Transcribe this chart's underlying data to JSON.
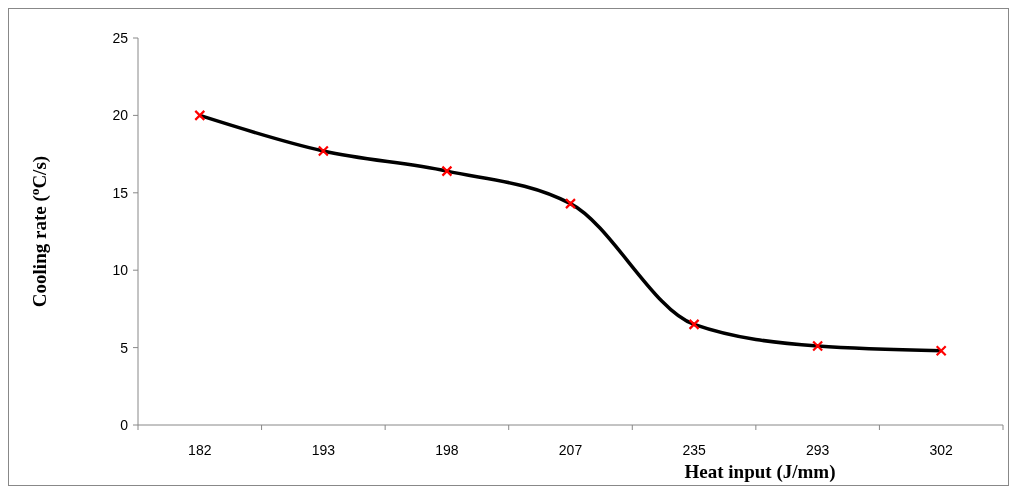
{
  "chart_data": {
    "type": "line",
    "xlabel": "Heat input (J/mm)",
    "ylabel": "Cooling rate ($^{o}$C/s)",
    "categories": [
      "182",
      "193",
      "198",
      "207",
      "235",
      "293",
      "302"
    ],
    "series": [
      {
        "color": "#000000",
        "colors": [
          "#ff0000",
          "#ff0000",
          "#ff0000",
          "#ff0000",
          "#ff0000",
          "#ff0000",
          "#ff0000"
        ],
        "values": [
          20.0,
          17.7,
          16.4,
          14.3,
          6.5,
          5.1,
          4.8
        ]
      }
    ],
    "ylim": [
      0,
      25
    ],
    "yticks": [
      0,
      5,
      10,
      15,
      20,
      25
    ],
    "marker": "cross",
    "line_style": "solid",
    "grid": false
  }
}
